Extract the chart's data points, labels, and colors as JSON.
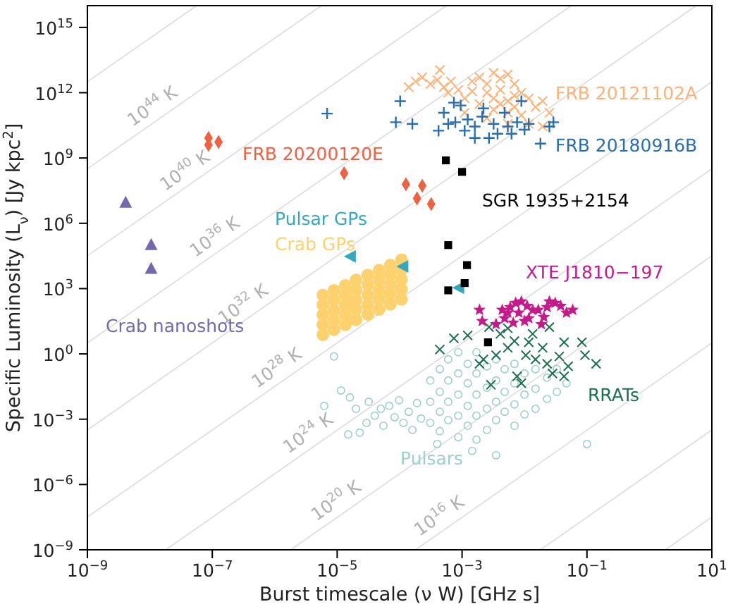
{
  "chart_data": {
    "type": "scatter",
    "xlabel": "Burst timescale (ν W) [GHz s]",
    "ylabel": "Specific Luminosity (L$_{ν}$) [Jy kpc$^{2}$]",
    "log": "xy",
    "xlim": [
      1e-09,
      10
    ],
    "ylim": [
      1e-09,
      1e+16
    ],
    "xticks": [
      {
        "value": 1e-09,
        "label": "10$^{−9}$"
      },
      {
        "value": 1e-07,
        "label": "10$^{−7}$"
      },
      {
        "value": 1e-05,
        "label": "10$^{−5}$"
      },
      {
        "value": 0.001,
        "label": "10$^{−3}$"
      },
      {
        "value": 0.1,
        "label": "10$^{−1}$"
      },
      {
        "value": 10,
        "label": "10$^{1}$"
      }
    ],
    "yticks": [
      {
        "value": 1e-09,
        "label": "10$^{−9}$"
      },
      {
        "value": 1e-06,
        "label": "10$^{−6}$"
      },
      {
        "value": 0.001,
        "label": "10$^{−3}$"
      },
      {
        "value": 1,
        "label": "10$^{0}$"
      },
      {
        "value": 1000,
        "label": "10$^{3}$"
      },
      {
        "value": 1000000.0,
        "label": "10$^{6}$"
      },
      {
        "value": 1000000000.0,
        "label": "10$^{9}$"
      },
      {
        "value": 1000000000000.0,
        "label": "10$^{12}$"
      },
      {
        "value": 1000000000000000.0,
        "label": "10$^{15}$"
      }
    ],
    "series": [
      {
        "type": "line",
        "color": "#dcdcdc",
        "x": [
          1e-09,
          5.6e-08
        ],
        "values": [
          3200000000000.0,
          1e+16
        ]
      },
      {
        "type": "line",
        "color": "#dcdcdc",
        "x": [
          1e-09,
          5.6e-06
        ],
        "values": [
          320000000.0,
          1e+16
        ]
      },
      {
        "type": "line",
        "color": "#dcdcdc",
        "x": [
          1e-09,
          0.00056
        ],
        "values": [
          32000.0,
          1e+16
        ]
      },
      {
        "type": "line",
        "color": "#dcdcdc",
        "x": [
          1e-09,
          0.056
        ],
        "values": [
          3.2,
          1e+16
        ]
      },
      {
        "type": "line",
        "color": "#dcdcdc",
        "x": [
          1e-09,
          5.6
        ],
        "values": [
          0.00032,
          1e+16
        ]
      },
      {
        "type": "line",
        "color": "#dcdcdc",
        "x": [
          1e-09,
          10
        ],
        "values": [
          3.2e-08,
          3200000000000.0
        ]
      },
      {
        "type": "line",
        "color": "#dcdcdc",
        "x": [
          1.8e-08,
          10
        ],
        "values": [
          1e-09,
          320000000.0
        ]
      },
      {
        "type": "line",
        "color": "#dcdcdc",
        "x": [
          1.8e-06,
          10
        ],
        "values": [
          1e-09,
          32000.0
        ]
      },
      {
        "type": "line",
        "color": "#dcdcdc",
        "x": [
          0.00018,
          10
        ],
        "values": [
          1e-09,
          3.2
        ]
      },
      {
        "type": "line",
        "color": "#dcdcdc",
        "x": [
          0.018,
          10
        ],
        "values": [
          1e-09,
          0.00032
        ]
      },
      {
        "type": "line",
        "color": "#dcdcdc",
        "x": [
          1.8,
          10
        ],
        "values": [
          1e-09,
          3.2e-08
        ]
      },
      {
        "type": "scatter",
        "name": "Pulsars",
        "color": "#9ecfcc",
        "marker": "circle",
        "x": [
          6.2e-06,
          8.9e-06,
          1.15e-05,
          1.5e-05,
          1.6e-05,
          2e-05,
          2.3e-05,
          2.95e-05,
          3.2e-05,
          4e-05,
          5e-05,
          5.5e-05,
          6.8e-05,
          8.3e-05,
          9.8e-05,
          0.000115,
          0.00014,
          0.00016,
          0.00019,
          0.00022,
          0.00031,
          0.00031,
          0.00031,
          0.00044,
          0.00044,
          0.00044,
          0.00044,
          0.0006,
          0.0006,
          0.0006,
          0.0006,
          0.00087,
          0.00087,
          0.00087,
          0.00087,
          0.00087,
          0.00123,
          0.00123,
          0.00123,
          0.00123,
          0.0017,
          0.0017,
          0.0017,
          0.0017,
          0.0017,
          0.0025,
          0.0025,
          0.0025,
          0.0025,
          0.0035,
          0.0035,
          0.0035,
          0.0035,
          0.0035,
          0.0048,
          0.0048,
          0.0048,
          0.0069,
          0.0069,
          0.0069,
          0.0069,
          0.01,
          0.01,
          0.01,
          0.015,
          0.015,
          0.015,
          0.023,
          0.023,
          0.033,
          0.033,
          0.047,
          0.1,
          0.00145,
          0.0004
        ],
        "values": [
          0.0041,
          0.76,
          0.021,
          0.0002,
          0.01,
          0.003,
          0.00024,
          0.00068,
          0.0063,
          0.00145,
          0.003,
          0.0005,
          0.0041,
          0.00123,
          0.0074,
          0.00068,
          0.0022,
          0.00032,
          0.0055,
          0.00107,
          0.06,
          0.0063,
          0.00068,
          0.2,
          0.018,
          0.0022,
          0.00028,
          0.56,
          0.06,
          0.0063,
          0.00091,
          1.2,
          0.126,
          0.0135,
          0.00145,
          0.00015,
          0.35,
          0.045,
          0.0041,
          0.0005,
          1.2,
          0.126,
          0.0135,
          0.00145,
          0.000115,
          0.27,
          0.028,
          0.003,
          0.00032,
          0.56,
          0.06,
          0.0063,
          0.00091,
          2.2e-05,
          0.2,
          0.018,
          0.0022,
          0.35,
          0.045,
          0.0048,
          0.0005,
          0.126,
          0.0135,
          0.00166,
          0.2,
          0.025,
          0.003,
          0.081,
          0.0085,
          0.2,
          0.018,
          0.045,
          7.2e-05,
          3.5e-05,
          7.2e-05
        ]
      },
      {
        "type": "scatter",
        "name": "RRATs",
        "color": "#1f6e50",
        "marker": "cross",
        "x": [
          0.00044,
          0.00074,
          0.00123,
          0.0019,
          0.0029,
          0.0027,
          0.0041,
          0.0054,
          0.0069,
          0.0076,
          0.0089,
          0.0105,
          0.0135,
          0.015,
          0.0195,
          0.025,
          0.028,
          0.036,
          0.043,
          0.05,
          0.083,
          0.093,
          0.14,
          0.0054,
          0.0022,
          0.0035,
          0.0117,
          0.023,
          0.043
        ],
        "values": [
          1.6,
          5.2,
          7.1,
          0.35,
          0.038,
          17,
          8.3,
          1.9,
          3.9,
          0.093,
          0.045,
          0.87,
          8.3,
          0.56,
          1.9,
          17,
          0.126,
          0.76,
          3.4,
          0.27,
          3.4,
          0.87,
          0.35,
          15,
          0.56,
          0.87,
          3.4,
          0.35,
          0.093
        ]
      },
      {
        "type": "scatter",
        "name": "XTE J1810−197",
        "color": "#c51b8a",
        "marker": "star",
        "x": [
          0.0019,
          0.0021,
          0.0035,
          0.0044,
          0.0048,
          0.0054,
          0.0059,
          0.0066,
          0.0072,
          0.0081,
          0.0089,
          0.01,
          0.011,
          0.0117,
          0.0135,
          0.0166,
          0.0186,
          0.0204,
          0.023,
          0.025,
          0.031,
          0.038,
          0.047,
          0.059
        ],
        "values": [
          105,
          32,
          23,
          105,
          43,
          78,
          140,
          27,
          220,
          78,
          255,
          32,
          160,
          43,
          105,
          105,
          23,
          49,
          140,
          255,
          220,
          160,
          78,
          105
        ]
      },
      {
        "type": "scatter",
        "name": "Crab GPs",
        "color": "#fdd26e",
        "marker": "circle-filled",
        "x": [
          5.9e-06,
          5.9e-06,
          5.9e-06,
          5.9e-06,
          5.9e-06,
          8.9e-06,
          8.9e-06,
          8.9e-06,
          8.9e-06,
          8.9e-06,
          1.35e-05,
          1.35e-05,
          1.35e-05,
          1.35e-05,
          1.35e-05,
          2e-05,
          2e-05,
          2e-05,
          2e-05,
          2e-05,
          3.1e-05,
          3.1e-05,
          3.1e-05,
          3.1e-05,
          3.1e-05,
          4.7e-05,
          4.7e-05,
          4.7e-05,
          4.7e-05,
          4.7e-05,
          7.1e-05,
          7.1e-05,
          7.1e-05,
          7.1e-05,
          7.1e-05,
          0.000107,
          0.000107,
          0.000107,
          0.000107,
          0.000107
        ],
        "values": [
          7.6,
          22,
          62,
          180,
          500,
          13,
          36,
          100,
          300,
          830,
          22,
          62,
          180,
          500,
          1400,
          37,
          110,
          300,
          870,
          2500,
          65,
          180,
          510,
          1500,
          4200,
          110,
          320,
          870,
          2500,
          7000,
          190,
          540,
          1500,
          4400,
          12000,
          320,
          930,
          2600,
          7400,
          21000
        ]
      },
      {
        "type": "scatter",
        "name": "Pulsar GPs",
        "color": "#35a8bd",
        "marker": "triangle-left",
        "x": [
          1.66e-05,
          0.000115,
          0.0009
        ],
        "values": [
          30000,
          10500,
          1100
        ]
      },
      {
        "type": "scatter",
        "name": "Crab nanoshots",
        "color": "#7568ad",
        "marker": "triangle",
        "x": [
          4.1e-09,
          1.05e-08,
          1.05e-08
        ],
        "values": [
          8700000.0,
          100000.0,
          8000
        ]
      },
      {
        "type": "scatter",
        "name": "FRB 20200120E",
        "color": "#ee6242",
        "marker": "diamond",
        "x": [
          8.7e-08,
          8.7e-08,
          1.26e-07,
          1.29e-05,
          0.000126,
          0.00023,
          0.00019,
          0.00032
        ],
        "values": [
          8300000000.0,
          4000000000.0,
          5400000000.0,
          200000000.0,
          62000000.0,
          53000000.0,
          14000000.0,
          7600000.0
        ]
      },
      {
        "type": "scatter",
        "name": "SGR 1935+2154",
        "color": "#000000",
        "marker": "square",
        "x": [
          0.00055,
          0.001,
          0.0006,
          0.0012,
          0.0006,
          0.0011,
          0.0026
        ],
        "values": [
          780000000.0,
          230000000.0,
          100000.0,
          12000.0,
          830,
          1800,
          3.4
        ]
      },
      {
        "type": "scatter",
        "name": "FRB 20121102A",
        "color": "#fdb27a",
        "marker": "cross",
        "x": [
          0.00014,
          0.00018,
          0.00023,
          0.00031,
          0.0004,
          0.00044,
          0.00051,
          0.00066,
          0.0006,
          0.00087,
          0.0011,
          0.00145,
          0.0019,
          0.0025,
          0.0032,
          0.0041,
          0.0054,
          0.0025,
          0.0032,
          0.0041,
          0.0054,
          0.0069,
          0.0089,
          0.0019,
          0.0032,
          0.0054,
          0.0069,
          0.0089,
          0.0117,
          0.015,
          0.0195,
          0.025,
          0.0117,
          0.0195,
          0.0054,
          0.0025,
          0.0011,
          0.00145,
          0.0069,
          0.0041
        ],
        "values": [
          1800000000000.0,
          3300000000000.0,
          5100000000000.0,
          2500000000000.0,
          3800000000000.0,
          11000000000000.0,
          1800000000000.0,
          3300000000000.0,
          1000000000000.0,
          1350000000000.0,
          550000000000.0,
          3300000000000.0,
          5100000000000.0,
          2500000000000.0,
          8100000000000.0,
          4400000000000.0,
          6900000000000.0,
          1000000000000.0,
          550000000000.0,
          1350000000000.0,
          410000000000.0,
          2500000000000.0,
          1000000000000.0,
          300000000000.0,
          166000000000.0,
          120000000000.0,
          220000000000.0,
          91000000000.0,
          550000000000.0,
          220000000000.0,
          410000000000.0,
          120000000000.0,
          37000000000.0,
          28000000000.0,
          37000000000.0,
          68000000000.0,
          120000000000.0,
          1150000000000.0,
          740000000000.0,
          300000000000.0
        ]
      },
      {
        "type": "scatter",
        "name": "FRB 20180916B",
        "color": "#2b6cab",
        "marker": "plus",
        "x": [
          0.000102,
          8.7e-05,
          0.00016,
          0.00042,
          0.00051,
          0.00074,
          0.00095,
          0.00078,
          0.00123,
          0.0016,
          0.0021,
          0.0027,
          0.0037,
          0.0048,
          0.0054,
          0.0076,
          0.01,
          0.0117,
          0.0089,
          0.018,
          0.025,
          0.029,
          0.0016,
          0.0011,
          0.0006,
          0.0032,
          0.0062,
          0.0022,
          6.9e-06
        ],
        "values": [
          410000000000.0,
          44000000000.0,
          37000000000.0,
          18000000000.0,
          120000000000.0,
          350000000000.0,
          260000000000.0,
          44000000000.0,
          59000000000.0,
          28000000000.0,
          79000000000.0,
          8300000000.0,
          13000000000.0,
          120000000000.0,
          28000000000.0,
          44000000000.0,
          20000000000.0,
          37000000000.0,
          410000000000.0,
          4600000000.0,
          28000000000.0,
          44000000000.0,
          8300000000.0,
          18000000000.0,
          37000000000.0,
          37000000000.0,
          13000000000.0,
          190000000000.0,
          110000000000.0
        ]
      }
    ],
    "annotations": [
      {
        "text": "10$^{44}$ K",
        "x": 1.48e-08,
        "y": 69000000000.0
      },
      {
        "text": "10$^{40}$ K",
        "x": 4.9e-08,
        "y": 76000000.0
      },
      {
        "text": "10$^{36}$ K",
        "x": 1.48e-07,
        "y": 69000.0
      },
      {
        "text": "10$^{32}$ K",
        "x": 4.2e-07,
        "y": 55
      },
      {
        "text": "10$^{28}$ K",
        "x": 1.45e-06,
        "y": 0.066
      },
      {
        "text": "10$^{24}$ K",
        "x": 4.6e-06,
        "y": 6.6e-05
      },
      {
        "text": "10$^{20}$ K",
        "x": 1.29e-05,
        "y": 5.2e-08
      },
      {
        "text": "10$^{16}$ K",
        "x": 0.00058,
        "y": 1.05e-08
      }
    ]
  }
}
